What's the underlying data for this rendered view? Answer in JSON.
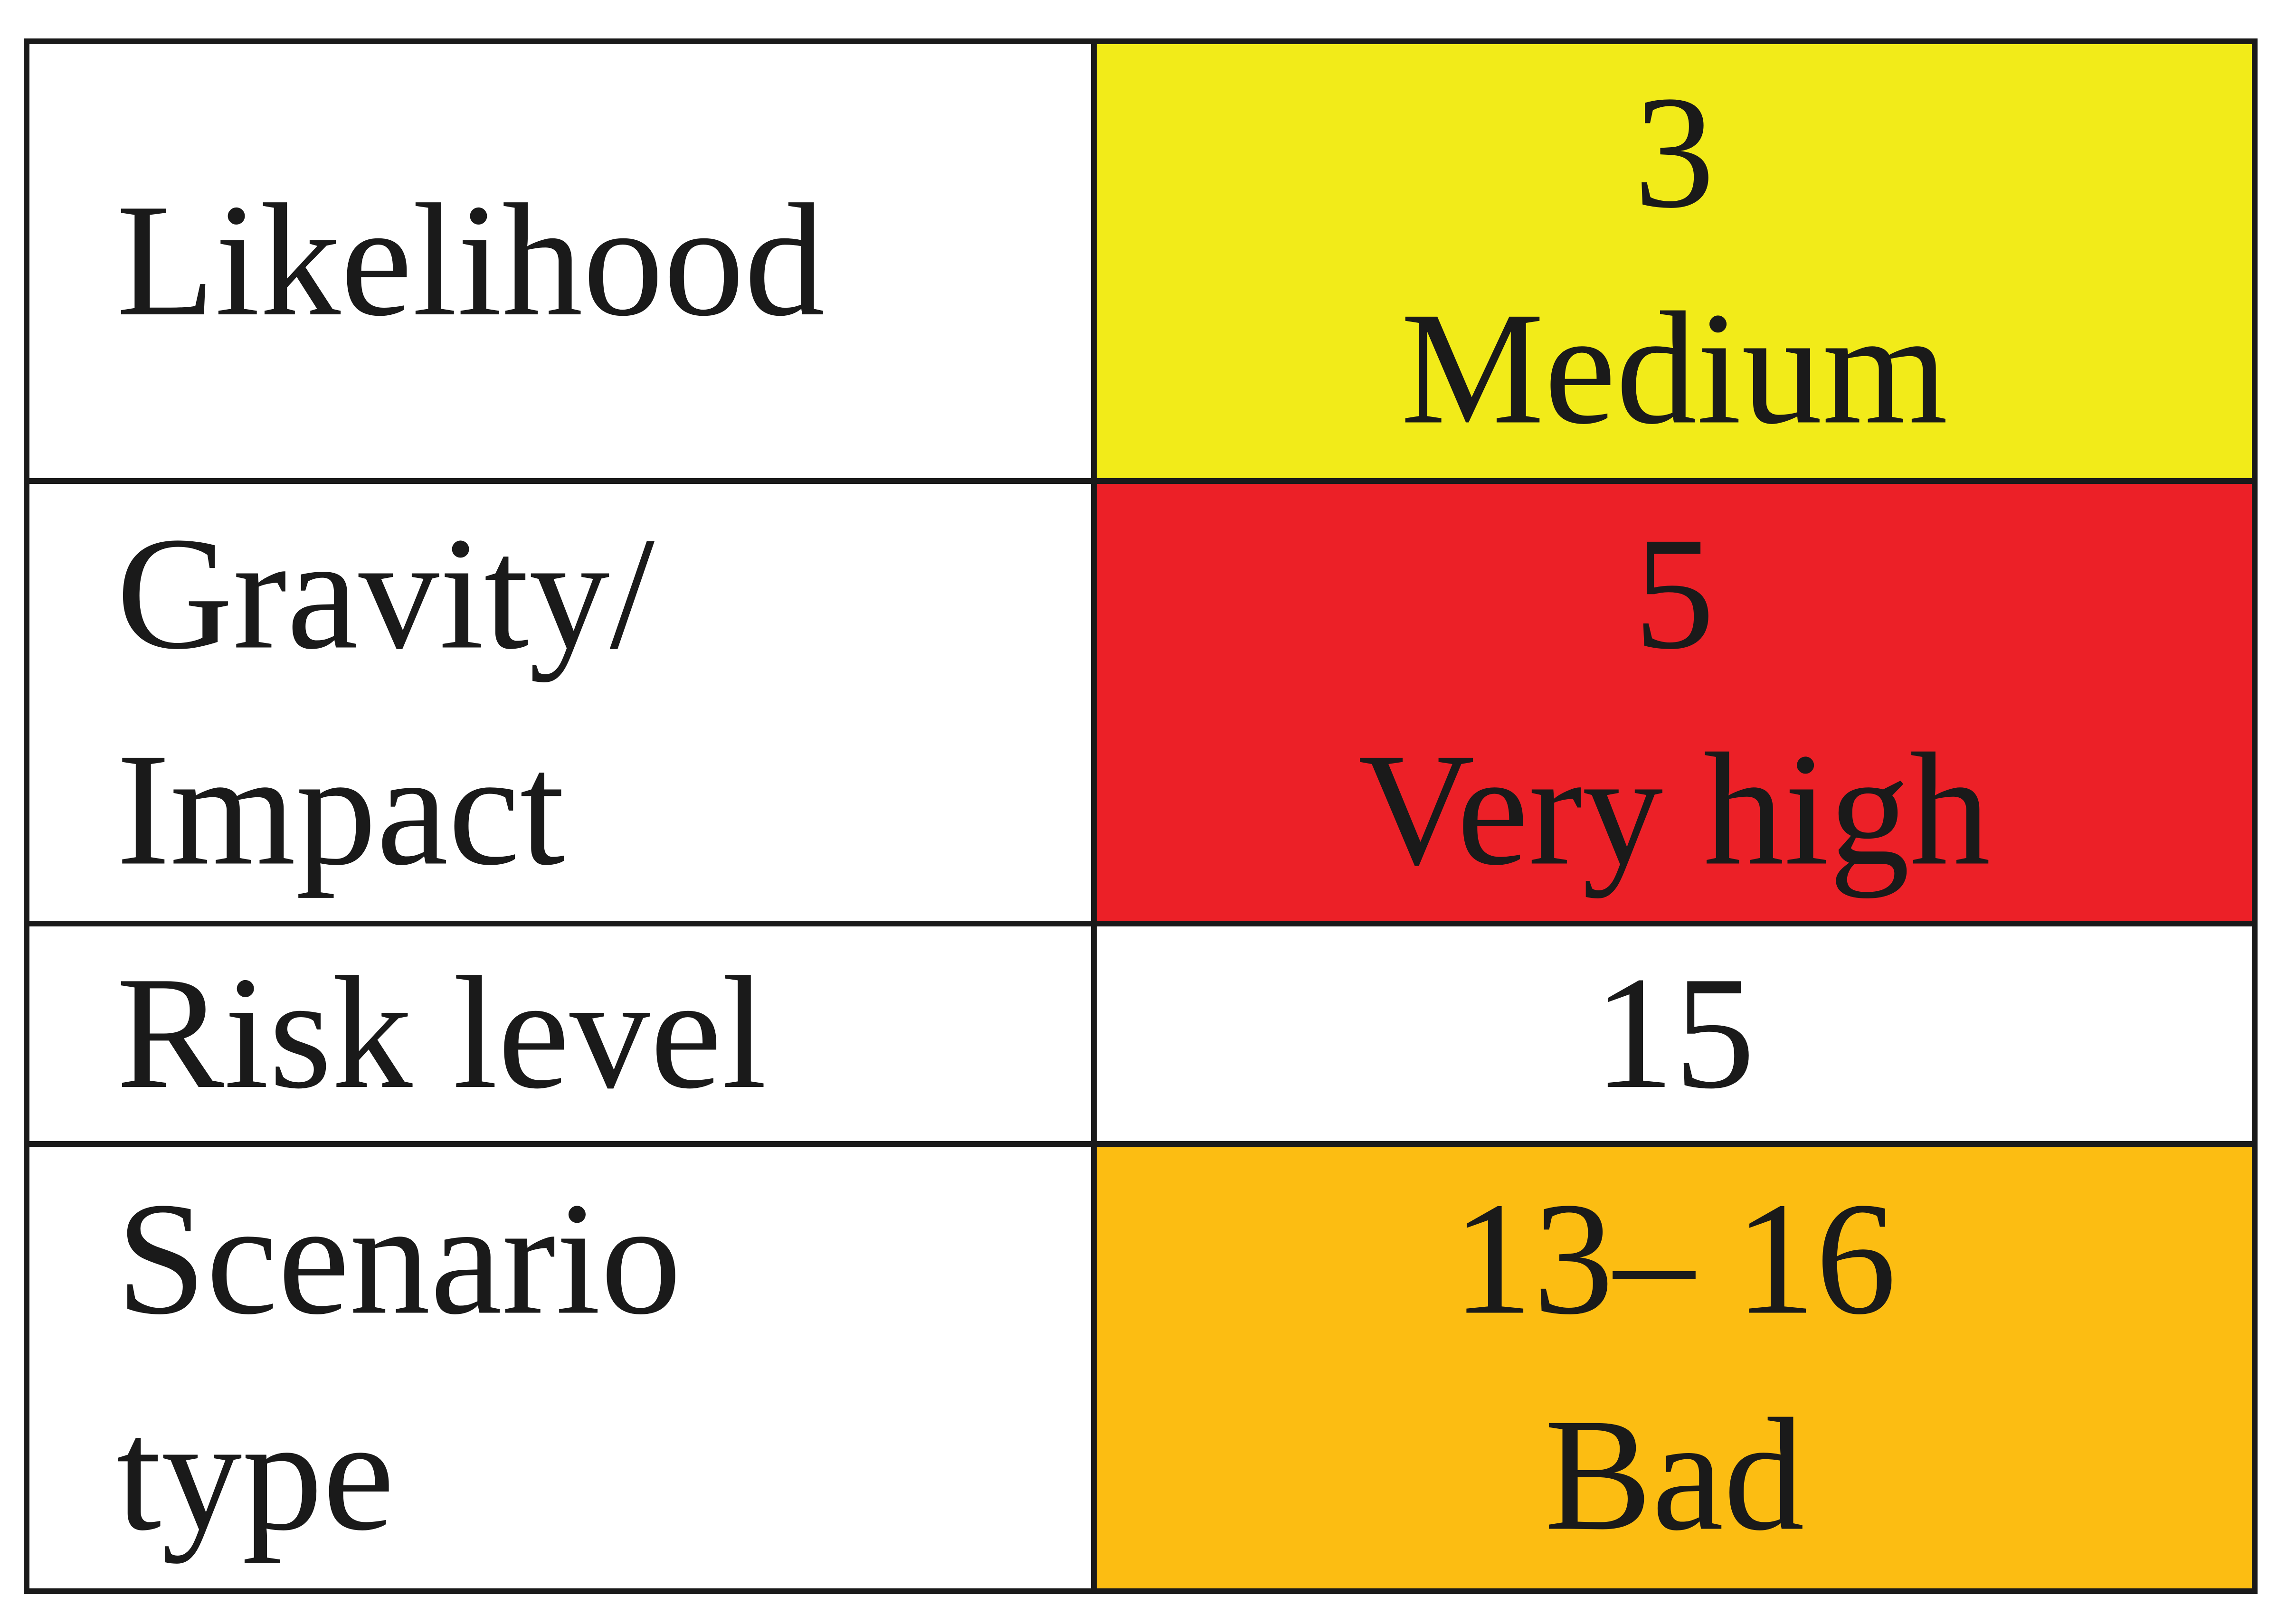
{
  "table": {
    "rows": [
      {
        "label": [
          "Likelihood"
        ],
        "value": [
          "3",
          "Medium"
        ],
        "color": "#f2eb19"
      },
      {
        "label": [
          "Gravity/",
          "Impact"
        ],
        "value": [
          "5",
          "Very high"
        ],
        "color": "#ec2027"
      },
      {
        "label": [
          "Risk level"
        ],
        "value": [
          "15"
        ],
        "color": "#ffffff"
      },
      {
        "label": [
          "Scenario",
          "type"
        ],
        "value": [
          "13– 16",
          "Bad"
        ],
        "color": "#fcbd12"
      }
    ]
  }
}
